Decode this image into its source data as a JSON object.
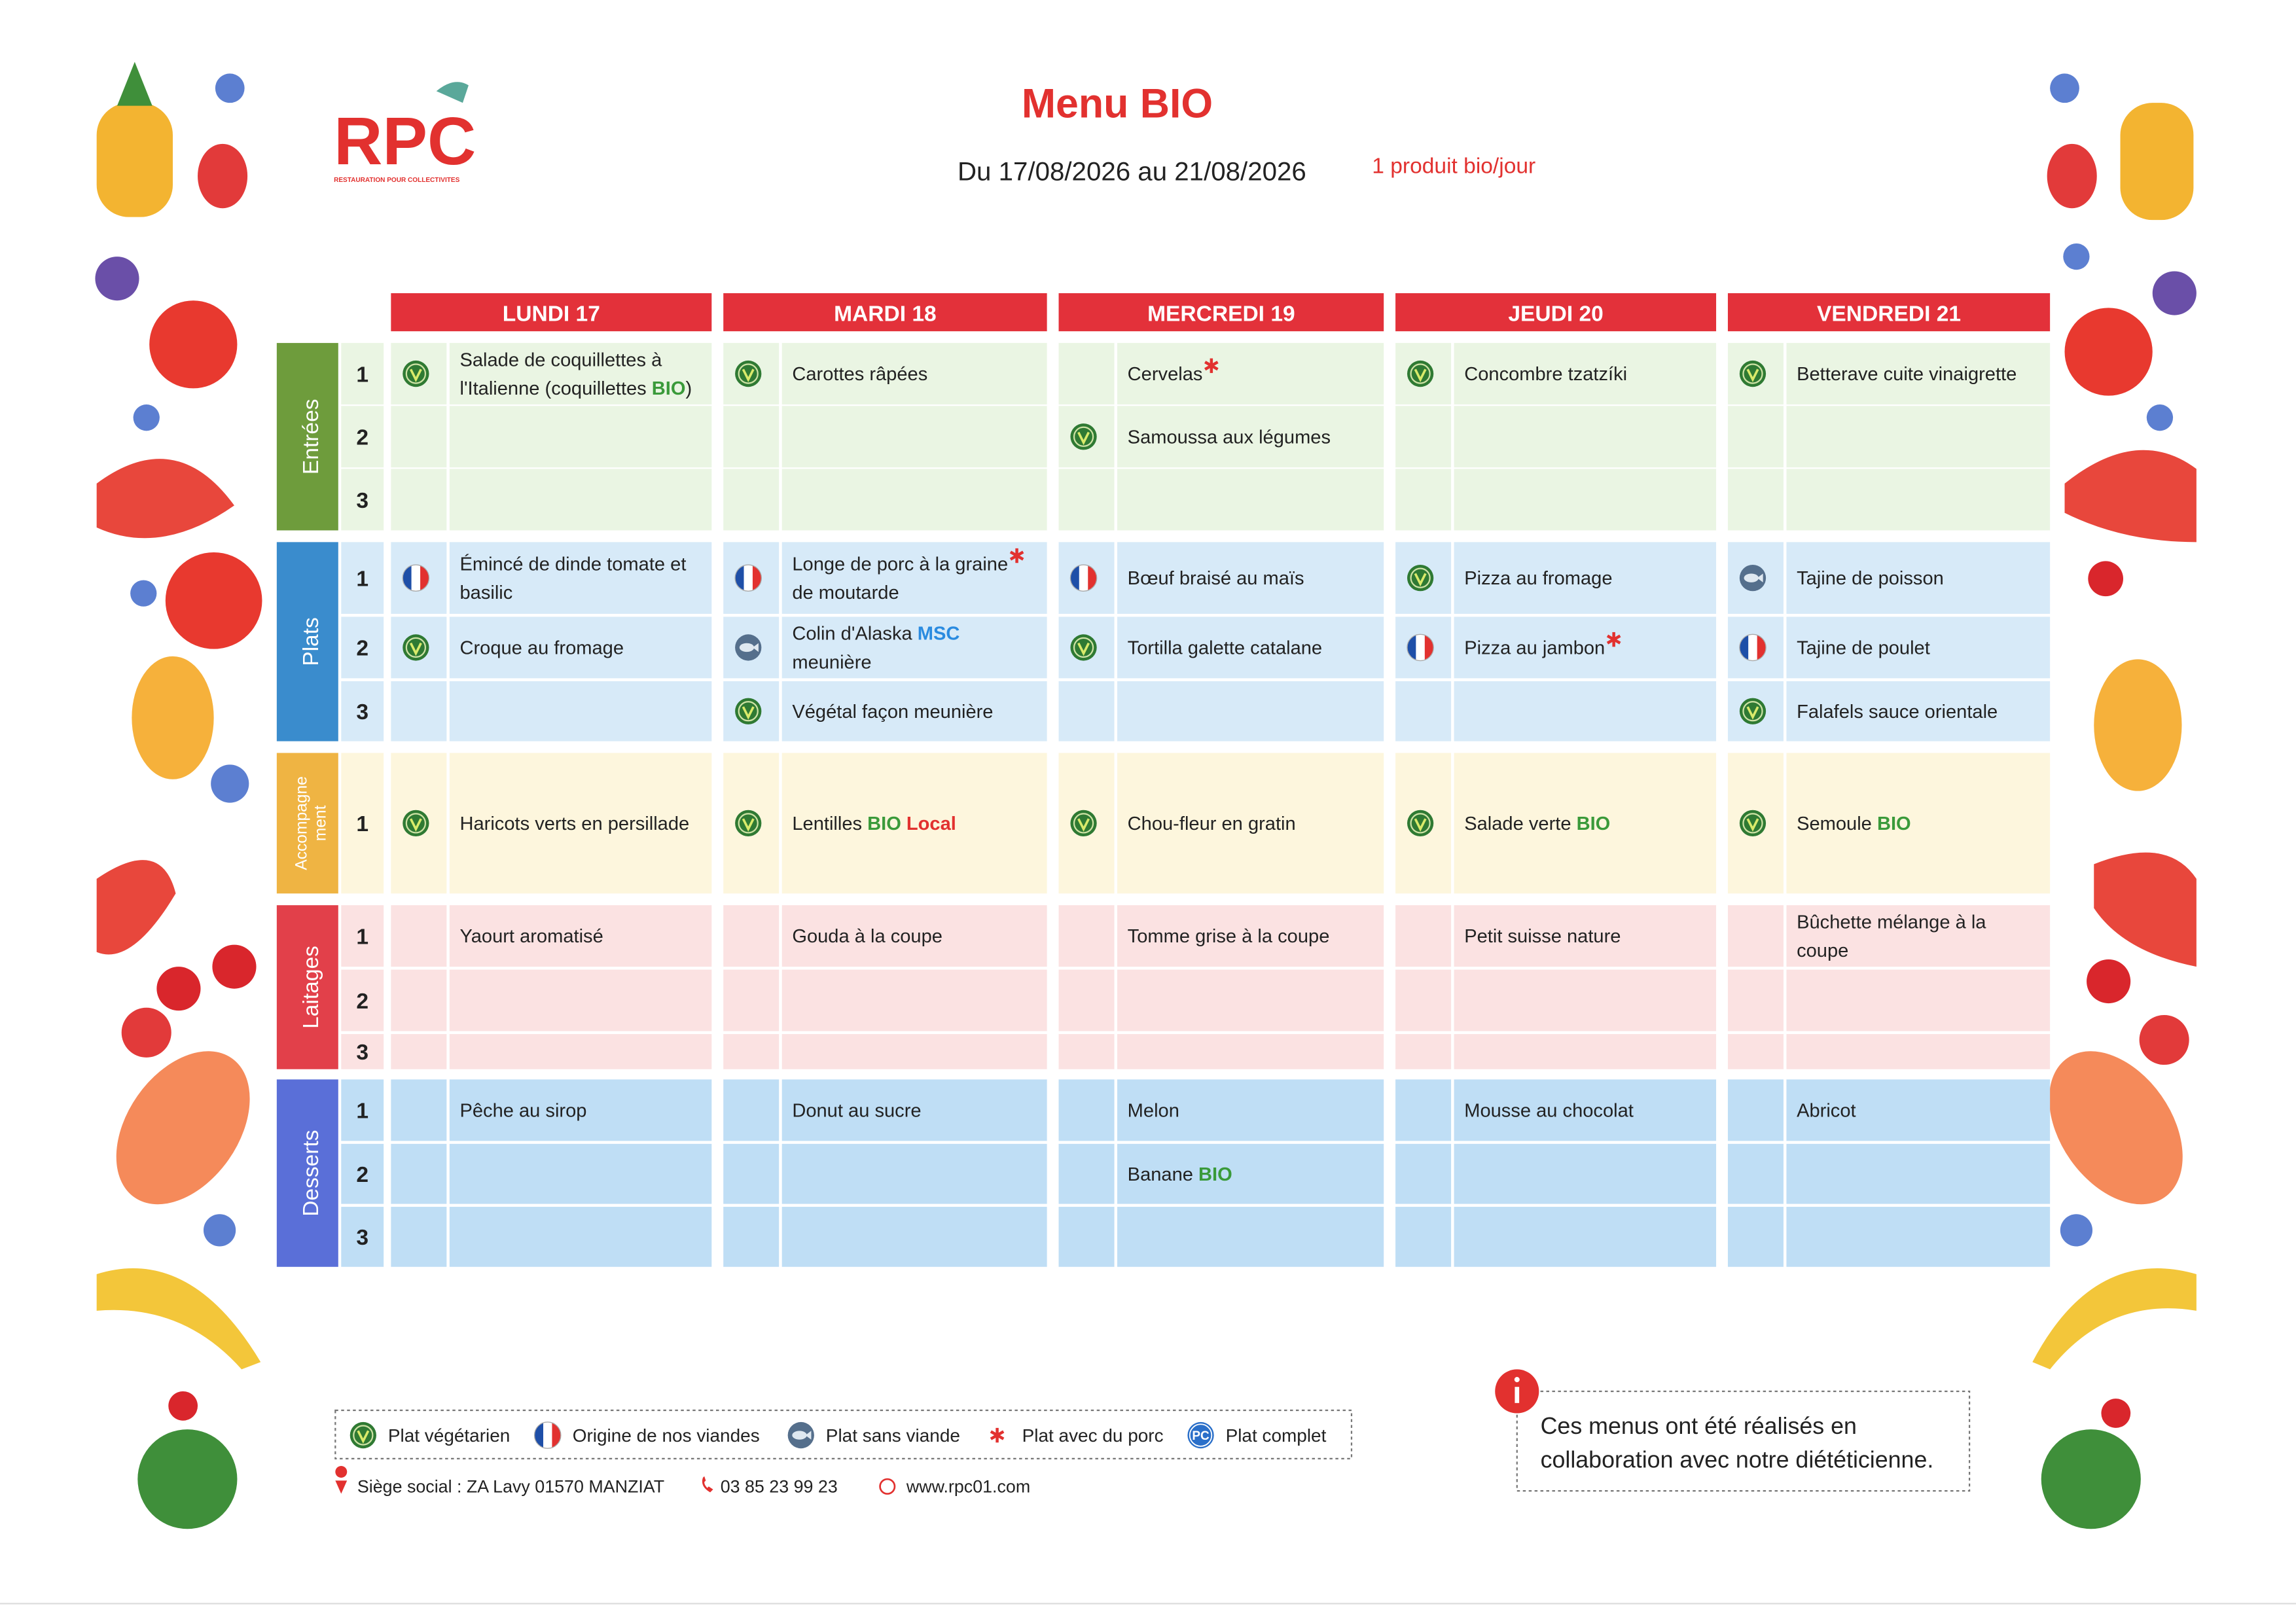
{
  "header": {
    "logo": "RPC",
    "logo_sub": "RESTAURATION POUR COLLECTIVITES",
    "title": "Menu BIO",
    "dates": "Du 17/08/2026 au 21/08/2026",
    "note": "1 produit bio/jour"
  },
  "days": [
    "LUNDI 17",
    "MARDI 18",
    "MERCREDI 19",
    "JEUDI 20",
    "VENDREDI 21"
  ],
  "sections": [
    {
      "label": [
        "Entrées"
      ],
      "rows": [
        {
          "num": "1",
          "cells": [
            {
              "icon": "veg",
              "lines": [
                [
                  "Salade de coquillettes à"
                ],
                [
                  "l'Italienne (coquillettes ",
                  {
                    "text": "BIO",
                    "style": "bio"
                  },
                  ")"
                ]
              ]
            },
            {
              "icon": "veg",
              "lines": [
                [
                  "Carottes râpées"
                ]
              ]
            },
            {
              "pork": true,
              "lines": [
                [
                  "Cervelas"
                ]
              ]
            },
            {
              "icon": "veg",
              "lines": [
                [
                  "Concombre tzatzíki"
                ]
              ]
            },
            {
              "icon": "veg",
              "lines": [
                [
                  "Betterave cuite vinaigrette"
                ]
              ]
            }
          ]
        },
        {
          "num": "2",
          "cells": [
            {},
            {},
            {
              "icon": "veg",
              "lines": [
                [
                  "Samoussa aux légumes"
                ]
              ]
            },
            {},
            {}
          ]
        },
        {
          "num": "3",
          "cells": [
            {},
            {},
            {},
            {},
            {}
          ]
        }
      ]
    },
    {
      "label": [
        "Plats"
      ],
      "rows": [
        {
          "num": "1",
          "cells": [
            {
              "icon": "flag",
              "lines": [
                [
                  "Émincé de dinde tomate et"
                ],
                [
                  "basilic"
                ]
              ]
            },
            {
              "icon": "flag",
              "pork": true,
              "lines": [
                [
                  "Longe de porc à la graine"
                ],
                [
                  "de moutarde"
                ]
              ]
            },
            {
              "icon": "flag",
              "lines": [
                [
                  "Bœuf braisé au maïs"
                ]
              ]
            },
            {
              "icon": "veg",
              "lines": [
                [
                  "Pizza au fromage"
                ]
              ]
            },
            {
              "icon": "fish",
              "lines": [
                [
                  "Tajine de poisson"
                ]
              ]
            }
          ]
        },
        {
          "num": "2",
          "cells": [
            {
              "icon": "veg",
              "lines": [
                [
                  "Croque au fromage"
                ]
              ]
            },
            {
              "icon": "fish",
              "lines": [
                [
                  "Colin d'Alaska ",
                  {
                    "text": "MSC",
                    "style": "msc"
                  }
                ],
                [
                  "meunière"
                ]
              ]
            },
            {
              "icon": "veg",
              "lines": [
                [
                  "Tortilla galette catalane"
                ]
              ]
            },
            {
              "icon": "flag",
              "pork": true,
              "lines": [
                [
                  "Pizza au jambon"
                ]
              ]
            },
            {
              "icon": "flag",
              "lines": [
                [
                  "Tajine de poulet"
                ]
              ]
            }
          ]
        },
        {
          "num": "3",
          "cells": [
            {},
            {
              "icon": "veg",
              "lines": [
                [
                  "Végétal façon meunière"
                ]
              ]
            },
            {},
            {},
            {
              "icon": "veg",
              "lines": [
                [
                  "Falafels sauce orientale"
                ]
              ]
            }
          ]
        }
      ]
    },
    {
      "label": [
        "Accompagne",
        "ment"
      ],
      "rows": [
        {
          "num": "1",
          "cells": [
            {
              "icon": "veg",
              "lines": [
                [
                  "Haricots verts en persillade"
                ]
              ]
            },
            {
              "icon": "veg",
              "lines": [
                [
                  "Lentilles ",
                  {
                    "text": "BIO",
                    "style": "bio"
                  },
                  " ",
                  {
                    "text": "Local",
                    "style": "local"
                  }
                ]
              ]
            },
            {
              "icon": "veg",
              "lines": [
                [
                  "Chou-fleur en gratin"
                ]
              ]
            },
            {
              "icon": "veg",
              "lines": [
                [
                  "Salade verte ",
                  {
                    "text": "BIO",
                    "style": "bio"
                  }
                ]
              ]
            },
            {
              "icon": "veg",
              "lines": [
                [
                  "Semoule ",
                  {
                    "text": "BIO",
                    "style": "bio"
                  }
                ]
              ]
            }
          ]
        }
      ]
    },
    {
      "label": [
        "Laitages"
      ],
      "rows": [
        {
          "num": "1",
          "cells": [
            {
              "lines": [
                [
                  "Yaourt aromatisé"
                ]
              ]
            },
            {
              "lines": [
                [
                  "Gouda à la coupe"
                ]
              ]
            },
            {
              "lines": [
                [
                  "Tomme grise à la coupe"
                ]
              ]
            },
            {
              "lines": [
                [
                  "Petit suisse nature"
                ]
              ]
            },
            {
              "lines": [
                [
                  "Bûchette mélange à la"
                ],
                [
                  "coupe"
                ]
              ]
            }
          ]
        },
        {
          "num": "2",
          "cells": [
            {},
            {},
            {},
            {},
            {}
          ]
        },
        {
          "num": "3",
          "cells": [
            {},
            {},
            {},
            {},
            {}
          ]
        }
      ]
    },
    {
      "label": [
        "Desserts"
      ],
      "rows": [
        {
          "num": "1",
          "cells": [
            {
              "lines": [
                [
                  "Pêche au sirop"
                ]
              ]
            },
            {
              "lines": [
                [
                  "Donut au sucre"
                ]
              ]
            },
            {
              "lines": [
                [
                  "Melon"
                ]
              ]
            },
            {
              "lines": [
                [
                  "Mousse au chocolat"
                ]
              ]
            },
            {
              "lines": [
                [
                  "Abricot"
                ]
              ]
            }
          ]
        },
        {
          "num": "2",
          "cells": [
            {},
            {},
            {
              "lines": [
                [
                  "Banane ",
                  {
                    "text": "BIO",
                    "style": "bio"
                  }
                ]
              ]
            },
            {},
            {}
          ]
        },
        {
          "num": "3",
          "cells": [
            {},
            {},
            {},
            {},
            {}
          ]
        }
      ]
    }
  ],
  "legend": [
    {
      "icon": "veg",
      "text": "Plat végétarien"
    },
    {
      "icon": "flag",
      "text": "Origine de nos viandes"
    },
    {
      "icon": "fish",
      "text": "Plat sans viande"
    },
    {
      "icon": "pork",
      "text": "Plat avec du porc"
    },
    {
      "icon": "complete",
      "badge": "PC",
      "text": "Plat complet"
    }
  ],
  "footer": {
    "address": "Siège social : ZA Lavy 01570 MANZIAT",
    "phone": "03 85 23 99 23",
    "web": "www.rpc01.com"
  },
  "info": {
    "lines": [
      "Ces menus ont été réalisés en",
      "collaboration avec notre diététicienne."
    ]
  }
}
